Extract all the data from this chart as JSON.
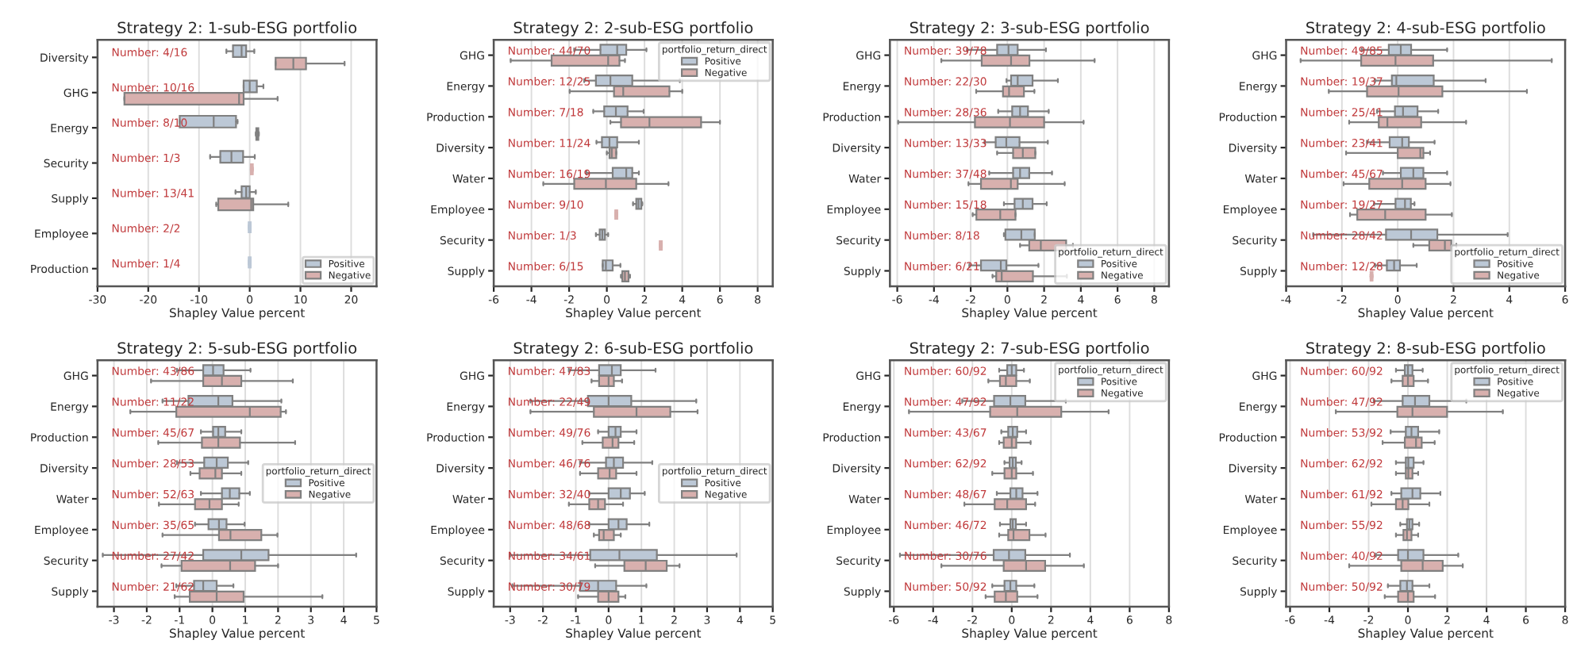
{
  "chart_data": [
    {
      "type": "box",
      "orientation": "horizontal",
      "title": "Strategy 2: 1-sub-ESG portfolio",
      "xlabel": "Shapley Value percent",
      "categories": [
        "Diversity",
        "GHG",
        "Energy",
        "Security",
        "Supply",
        "Employee",
        "Production"
      ],
      "xlim": [
        -30,
        25
      ],
      "xticks": [
        -30,
        -20,
        -10,
        0,
        10,
        20
      ],
      "grid": "x",
      "legend": "bottom right",
      "annotations": [
        "Number: 4/16",
        "Number: 10/16",
        "Number: 8/10",
        "Number: 1/3",
        "Number: 13/41",
        "Number: 2/2",
        "Number: 1/4"
      ],
      "series": [
        {
          "name": "Positive",
          "color": "#bcc8d6",
          "boxes": [
            {
              "low": -4.6,
              "q1": -3.3,
              "median": -1.6,
              "q3": -0.7,
              "high": 0.9
            },
            {
              "low": -1.2,
              "q1": -1.2,
              "median": 0,
              "q3": 1.4,
              "high": 2.7
            },
            {
              "low": -13.8,
              "q1": -13.8,
              "median": -7.1,
              "q3": -2.7,
              "high": -2.4
            },
            {
              "low": -7.8,
              "q1": -5.8,
              "median": -3.6,
              "q3": -1.3,
              "high": 1.0
            },
            {
              "low": -2.8,
              "q1": -1.6,
              "median": -0.7,
              "q3": 0,
              "high": 1.2
            },
            {
              "low": 0,
              "q1": 0,
              "median": 0,
              "q3": 0,
              "high": 0
            },
            {
              "low": 0,
              "q1": 0,
              "median": 0,
              "q3": 0,
              "high": 0
            }
          ]
        },
        {
          "name": "Negative",
          "color": "#d8b0ae",
          "boxes": [
            {
              "low": 5.1,
              "q1": 5.1,
              "median": 8.6,
              "q3": 11.1,
              "high": 18.7
            },
            {
              "low": -24.7,
              "q1": -24.7,
              "median": -2.1,
              "q3": -1.2,
              "high": 5.5
            },
            {
              "low": 1.2,
              "q1": 1.3,
              "median": 1.5,
              "q3": 1.7,
              "high": 1.8
            },
            {
              "low": 0.4,
              "q1": 0.4,
              "median": 0.4,
              "q3": 0.4,
              "high": 0.4
            },
            {
              "low": -6.6,
              "q1": -6.2,
              "median": 0.3,
              "q3": 0.7,
              "high": 7.6
            },
            null,
            null
          ]
        }
      ]
    },
    {
      "type": "box",
      "orientation": "horizontal",
      "title": "Strategy 2: 2-sub-ESG portfolio",
      "xlabel": "Shapley Value percent",
      "categories": [
        "GHG",
        "Energy",
        "Production",
        "Diversity",
        "Water",
        "Employee",
        "Security",
        "Supply"
      ],
      "xlim": [
        -6,
        8.8
      ],
      "xticks": [
        -6,
        -4,
        -2,
        0,
        2,
        4,
        6,
        8
      ],
      "grid": "x",
      "legend": "top right",
      "legend_title": "portfolio_return_direct",
      "annotations": [
        "Number: 44/70",
        "Number: 12/25",
        "Number: 7/18",
        "Number: 11/24",
        "Number: 16/19",
        "Number: 9/10",
        "Number: 1/3",
        "Number: 6/15"
      ],
      "series": [
        {
          "name": "Positive",
          "color": "#bcc8d6",
          "boxes": [
            {
              "low": -1.73,
              "q1": -0.34,
              "median": 0.55,
              "q3": 1.03,
              "high": 2.1
            },
            {
              "low": -1.2,
              "q1": -0.58,
              "median": 0.19,
              "q3": 1.35,
              "high": 3.87
            },
            {
              "low": -0.72,
              "q1": -0.14,
              "median": 0.48,
              "q3": 1.1,
              "high": 1.95
            },
            {
              "low": -0.55,
              "q1": -0.26,
              "median": 0.14,
              "q3": 0.55,
              "high": 1.7
            },
            {
              "low": -1.08,
              "q1": 0.31,
              "median": 1.03,
              "q3": 1.35,
              "high": 1.7
            },
            {
              "low": 1.39,
              "q1": 1.56,
              "median": 1.68,
              "q3": 1.83,
              "high": 1.88
            },
            {
              "low": -0.58,
              "q1": -0.38,
              "median": -0.24,
              "q3": -0.1,
              "high": 0.07
            },
            {
              "low": -0.22,
              "q1": -0.22,
              "median": -0.05,
              "q3": 0.31,
              "high": 0.72
            }
          ]
        },
        {
          "name": "Negative",
          "color": "#d8b0ae",
          "boxes": [
            {
              "low": -5.1,
              "q1": -2.93,
              "median": 0.07,
              "q3": 0.67,
              "high": 0.96
            },
            {
              "low": -1.97,
              "q1": 0.38,
              "median": 0.87,
              "q3": 3.32,
              "high": 4.0
            },
            {
              "low": 0.19,
              "q1": 0.75,
              "median": 2.26,
              "q3": 5.0,
              "high": 6.0
            },
            {
              "low": 0,
              "q1": 0.14,
              "median": 0.26,
              "q3": 0.5,
              "high": 0.5
            },
            {
              "low": -3.37,
              "q1": -1.73,
              "median": -0.05,
              "q3": 1.56,
              "high": 3.27
            },
            {
              "low": 0.5,
              "q1": 0.5,
              "median": 0.5,
              "q3": 0.5,
              "high": 0.5
            },
            {
              "low": 2.86,
              "q1": 2.86,
              "median": 2.86,
              "q3": 2.86,
              "high": 2.86
            },
            {
              "low": 0.75,
              "q1": 0.82,
              "median": 0.96,
              "q3": 1.15,
              "high": 1.23
            }
          ]
        }
      ]
    },
    {
      "type": "box",
      "orientation": "horizontal",
      "title": "Strategy 2: 3-sub-ESG portfolio",
      "xlabel": "Shapley Value percent",
      "categories": [
        "GHG",
        "Energy",
        "Production",
        "Diversity",
        "Water",
        "Employee",
        "Security",
        "Supply"
      ],
      "xlim": [
        -6.4,
        8.8
      ],
      "xticks": [
        -6,
        -4,
        -2,
        0,
        2,
        4,
        6,
        8
      ],
      "grid": "x",
      "legend": "bottom right",
      "legend_title": "portfolio_return_direct",
      "annotations": [
        "Number: 39/78",
        "Number: 22/30",
        "Number: 28/36",
        "Number: 13/33",
        "Number: 37/48",
        "Number: 15/18",
        "Number: 8/18",
        "Number: 6/21"
      ],
      "series": [
        {
          "name": "Positive",
          "color": "#bcc8d6",
          "boxes": [
            {
              "low": -2.2,
              "q1": -0.56,
              "median": 0.06,
              "q3": 0.56,
              "high": 2.1
            },
            {
              "low": -0.05,
              "q1": 0.2,
              "median": 0.56,
              "q3": 1.37,
              "high": 2.75
            },
            {
              "low": -0.5,
              "q1": 0.26,
              "median": 0.69,
              "q3": 1.12,
              "high": 2.25
            },
            {
              "low": -1.24,
              "q1": -0.64,
              "median": -0.06,
              "q3": 0.66,
              "high": 2.2
            },
            {
              "low": -0.99,
              "q1": 0.31,
              "median": 0.69,
              "q3": 1.19,
              "high": 2.43
            },
            {
              "low": -0.19,
              "q1": 0.39,
              "median": 0.84,
              "q3": 1.37,
              "high": 2.14
            },
            {
              "low": -0.19,
              "q1": -0.11,
              "median": 0.76,
              "q3": 1.49,
              "high": 1.49
            },
            {
              "low": -2.07,
              "q1": -1.44,
              "median": -0.36,
              "q3": -0.06,
              "high": 1.69
            }
          ]
        },
        {
          "name": "Negative",
          "color": "#d8b0ae",
          "boxes": [
            {
              "low": -3.6,
              "q1": -1.4,
              "median": 0.2,
              "q3": 1.2,
              "high": 4.75
            },
            {
              "low": -1.7,
              "q1": -0.24,
              "median": 0.09,
              "q3": 0.9,
              "high": 1.47
            },
            {
              "low": -5.95,
              "q1": -1.77,
              "median": 0.14,
              "q3": 2.0,
              "high": 4.15
            },
            {
              "low": -0.56,
              "q1": 0.31,
              "median": 0.84,
              "q3": 1.52,
              "high": 1.52
            },
            {
              "low": -2.12,
              "q1": -1.44,
              "median": 0.19,
              "q3": 0.56,
              "high": 3.12
            },
            {
              "low": -1.89,
              "q1": -1.69,
              "median": -0.39,
              "q3": 0.44,
              "high": 0.44
            },
            {
              "low": 0.69,
              "q1": 1.19,
              "median": 1.82,
              "q3": 3.2,
              "high": 3.57
            },
            {
              "low": -0.81,
              "q1": -0.61,
              "median": -0.31,
              "q3": 1.39,
              "high": 3.24
            }
          ]
        }
      ]
    },
    {
      "type": "box",
      "orientation": "horizontal",
      "title": "Strategy 2: 4-sub-ESG portfolio",
      "xlabel": "Shapley Value percent",
      "categories": [
        "GHG",
        "Energy",
        "Production",
        "Diversity",
        "Water",
        "Employee",
        "Security",
        "Supply"
      ],
      "xlim": [
        -4,
        6
      ],
      "xticks": [
        -4,
        -2,
        0,
        2,
        4,
        6
      ],
      "grid": "x",
      "legend": "bottom right",
      "legend_title": "portfolio_return_direct",
      "annotations": [
        "Number: 49/85",
        "Number: 19/37",
        "Number: 25/41",
        "Number: 23/41",
        "Number: 45/67",
        "Number: 19/27",
        "Number: 28/42",
        "Number: 12/28"
      ],
      "series": [
        {
          "name": "Positive",
          "color": "#bcc8d6",
          "boxes": [
            {
              "low": -1.29,
              "q1": -0.32,
              "median": 0.11,
              "q3": 0.48,
              "high": 1.77
            },
            {
              "low": -0.81,
              "q1": -0.21,
              "median": -0.05,
              "q3": 1.29,
              "high": 3.15
            },
            {
              "low": -0.74,
              "q1": -0.1,
              "median": 0.19,
              "q3": 0.71,
              "high": 1.45
            },
            {
              "low": -1.1,
              "q1": -0.29,
              "median": 0.16,
              "q3": 0.4,
              "high": 1.32
            },
            {
              "low": -0.53,
              "q1": 0.11,
              "median": 0.56,
              "q3": 0.92,
              "high": 1.77
            },
            {
              "low": -0.85,
              "q1": -0.08,
              "median": 0.26,
              "q3": 0.47,
              "high": 0.6
            },
            {
              "low": -3.03,
              "q1": -0.42,
              "median": 0.48,
              "q3": 1.42,
              "high": 3.94
            },
            {
              "low": -0.81,
              "q1": -0.39,
              "median": -0.13,
              "q3": 0.08,
              "high": 0.68
            }
          ]
        },
        {
          "name": "Negative",
          "color": "#d8b0ae",
          "boxes": [
            {
              "low": -3.48,
              "q1": -1.31,
              "median": -0.08,
              "q3": 1.27,
              "high": 5.52
            },
            {
              "low": -2.47,
              "q1": -1.1,
              "median": 0.03,
              "q3": 1.6,
              "high": 4.63
            },
            {
              "low": -1.74,
              "q1": -0.68,
              "median": -0.37,
              "q3": 0.84,
              "high": 2.45
            },
            {
              "low": -1.85,
              "q1": 0,
              "median": 0.81,
              "q3": 0.92,
              "high": 1.16
            },
            {
              "low": -1.94,
              "q1": -1.02,
              "median": 0.16,
              "q3": 1.0,
              "high": 1.89
            },
            {
              "low": -1.71,
              "q1": -1.45,
              "median": -0.45,
              "q3": 1.0,
              "high": 1.94
            },
            {
              "low": 0.56,
              "q1": 1.13,
              "median": 1.69,
              "q3": 1.92,
              "high": 2.1
            },
            {
              "low": -0.94,
              "q1": -0.94,
              "median": -0.94,
              "q3": -0.94,
              "high": -0.94
            }
          ]
        }
      ]
    },
    {
      "type": "box",
      "orientation": "horizontal",
      "title": "Strategy 2: 5-sub-ESG portfolio",
      "xlabel": "Shapley Value percent",
      "categories": [
        "GHG",
        "Energy",
        "Production",
        "Diversity",
        "Water",
        "Employee",
        "Security",
        "Supply"
      ],
      "xlim": [
        -3.5,
        5
      ],
      "xticks": [
        -3,
        -2,
        -1,
        0,
        1,
        2,
        3,
        4,
        5
      ],
      "grid": "x",
      "legend": "right",
      "legend_title": "portfolio_return_direct",
      "annotations": [
        "Number: 43/86",
        "Number: 11/22",
        "Number: 45/67",
        "Number: 28/53",
        "Number: 52/63",
        "Number: 35/65",
        "Number: 27/42",
        "Number: 21/62"
      ],
      "series": [
        {
          "name": "Positive",
          "color": "#bcc8d6",
          "boxes": [
            {
              "low": -1.08,
              "q1": -0.28,
              "median": 0.02,
              "q3": 0.34,
              "high": 1.16
            },
            {
              "low": -1.52,
              "q1": -0.73,
              "median": 0.18,
              "q3": 0.61,
              "high": 2.1
            },
            {
              "low": -0.35,
              "q1": 0.02,
              "median": 0.18,
              "q3": 0.39,
              "high": 0.88
            },
            {
              "low": -1.08,
              "q1": -0.25,
              "median": 0.13,
              "q3": 0.47,
              "high": 1.09
            },
            {
              "low": -0.35,
              "q1": 0.29,
              "median": 0.53,
              "q3": 0.82,
              "high": 1.14
            },
            {
              "low": -0.53,
              "q1": -0.12,
              "median": 0.2,
              "q3": 0.43,
              "high": 0.98
            },
            {
              "low": -3.34,
              "q1": -0.28,
              "median": 0.88,
              "q3": 1.71,
              "high": 4.38
            },
            {
              "low": -1.1,
              "q1": -0.56,
              "median": -0.28,
              "q3": 0.13,
              "high": 0.64
            }
          ]
        },
        {
          "name": "Negative",
          "color": "#d8b0ae",
          "boxes": [
            {
              "low": -1.87,
              "q1": -0.28,
              "median": 0.29,
              "q3": 0.88,
              "high": 2.45
            },
            {
              "low": -2.5,
              "q1": -1.1,
              "median": 1.14,
              "q3": 2.08,
              "high": 2.24
            },
            {
              "low": -1.65,
              "q1": -0.32,
              "median": 0.18,
              "q3": 0.84,
              "high": 2.52
            },
            {
              "low": -0.67,
              "q1": -0.39,
              "median": 0.09,
              "q3": 0.29,
              "high": 0.88
            },
            {
              "low": -1.63,
              "q1": -0.53,
              "median": -0.09,
              "q3": 0.29,
              "high": 0.8
            },
            {
              "low": -1.52,
              "q1": 0.2,
              "median": 0.55,
              "q3": 1.49,
              "high": 1.98
            },
            {
              "low": -1.55,
              "q1": -0.94,
              "median": 0.54,
              "q3": 1.3,
              "high": 2.0
            },
            {
              "low": -1.15,
              "q1": -0.69,
              "median": 0.13,
              "q3": 0.95,
              "high": 3.35
            }
          ]
        }
      ]
    },
    {
      "type": "box",
      "orientation": "horizontal",
      "title": "Strategy 2: 6-sub-ESG portfolio",
      "xlabel": "Shapley Value percent",
      "categories": [
        "GHG",
        "Energy",
        "Production",
        "Diversity",
        "Water",
        "Employee",
        "Security",
        "Supply"
      ],
      "xlim": [
        -3.5,
        5
      ],
      "xticks": [
        -3,
        -2,
        -1,
        0,
        1,
        2,
        3,
        4,
        5
      ],
      "grid": "x",
      "legend": "right",
      "legend_title": "portfolio_return_direct",
      "annotations": [
        "Number: 47/83",
        "Number: 22/49",
        "Number: 49/76",
        "Number: 46/76",
        "Number: 32/40",
        "Number: 48/68",
        "Number: 34/61",
        "Number: 30/79"
      ],
      "series": [
        {
          "name": "Positive",
          "color": "#bcc8d6",
          "boxes": [
            {
              "low": -1.21,
              "q1": -0.29,
              "median": 0.1,
              "q3": 0.37,
              "high": 1.43
            },
            {
              "low": -2.38,
              "q1": -0.63,
              "median": 0,
              "q3": 0.69,
              "high": 2.67
            },
            {
              "low": -0.32,
              "q1": 0,
              "median": 0.21,
              "q3": 0.37,
              "high": 0.85
            },
            {
              "low": -0.87,
              "q1": -0.08,
              "median": 0.16,
              "q3": 0.44,
              "high": 1.33
            },
            {
              "low": -0.59,
              "q1": 0,
              "median": 0.37,
              "q3": 0.65,
              "high": 1.1
            },
            {
              "low": -0.59,
              "q1": 0,
              "median": 0.3,
              "q3": 0.55,
              "high": 1.24
            },
            {
              "low": -3.0,
              "q1": -0.56,
              "median": 0.33,
              "q3": 1.47,
              "high": 3.9
            },
            {
              "low": -2.93,
              "q1": -0.87,
              "median": -0.32,
              "q3": 0.23,
              "high": 1.15
            }
          ]
        },
        {
          "name": "Negative",
          "color": "#d8b0ae",
          "boxes": [
            {
              "low": -0.52,
              "q1": -0.29,
              "median": 0,
              "q3": 0.16,
              "high": 0.41
            },
            {
              "low": -2.38,
              "q1": -0.45,
              "median": 0.85,
              "q3": 1.88,
              "high": 2.71
            },
            {
              "low": -0.8,
              "q1": -0.18,
              "median": 0.12,
              "q3": 0.3,
              "high": 0.78
            },
            {
              "low": -0.87,
              "q1": -0.32,
              "median": 0.03,
              "q3": 0.23,
              "high": 0.85
            },
            {
              "low": -1.21,
              "q1": -0.59,
              "median": -0.32,
              "q3": -0.11,
              "high": 0.44
            },
            {
              "low": -0.45,
              "q1": -0.29,
              "median": -0.15,
              "q3": 0.16,
              "high": 0.37
            },
            {
              "low": -0.41,
              "q1": 0.48,
              "median": 1.13,
              "q3": 1.77,
              "high": 2.16
            },
            {
              "low": -0.93,
              "q1": -0.32,
              "median": 0,
              "q3": 0.3,
              "high": 0.51
            }
          ]
        }
      ]
    },
    {
      "type": "box",
      "orientation": "horizontal",
      "title": "Strategy 2: 7-sub-ESG portfolio",
      "xlabel": "Shapley Value percent",
      "categories": [
        "GHG",
        "Energy",
        "Production",
        "Diversity",
        "Water",
        "Employee",
        "Security",
        "Supply"
      ],
      "xlim": [
        -6.2,
        8
      ],
      "xticks": [
        -6,
        -4,
        -2,
        0,
        2,
        4,
        6,
        8
      ],
      "grid": "x",
      "legend": "top right",
      "legend_title": "portfolio_return_direct",
      "annotations": [
        "Number: 60/92",
        "Number: 47/92",
        "Number: 43/67",
        "Number: 62/92",
        "Number: 48/67",
        "Number: 46/72",
        "Number: 30/76",
        "Number: 50/92"
      ],
      "series": [
        {
          "name": "Positive",
          "color": "#bcc8d6",
          "boxes": [
            {
              "low": -0.64,
              "q1": -0.23,
              "median": 0,
              "q3": 0.23,
              "high": 0.62
            },
            {
              "low": -2.52,
              "q1": -0.9,
              "median": -0.07,
              "q3": 0.69,
              "high": 2.75
            },
            {
              "low": -0.53,
              "q1": -0.18,
              "median": 0.05,
              "q3": 0.28,
              "high": 0.73
            },
            {
              "low": -0.37,
              "q1": -0.11,
              "median": 0.05,
              "q3": 0.21,
              "high": 0.5
            },
            {
              "low": -0.76,
              "q1": -0.07,
              "median": 0.23,
              "q3": 0.55,
              "high": 1.31
            },
            {
              "low": -0.6,
              "q1": -0.07,
              "median": 0.05,
              "q3": 0.21,
              "high": 0.73
            },
            {
              "low": -5.69,
              "q1": -0.92,
              "median": -0.14,
              "q3": 0.69,
              "high": 2.96
            },
            {
              "low": -0.99,
              "q1": -0.37,
              "median": -0.07,
              "q3": 0.23,
              "high": 1.15
            }
          ]
        },
        {
          "name": "Negative",
          "color": "#d8b0ae",
          "boxes": [
            {
              "low": -1.19,
              "q1": -0.6,
              "median": -0.3,
              "q3": 0.23,
              "high": 0.92
            },
            {
              "low": -5.23,
              "q1": -1.1,
              "median": 0.28,
              "q3": 2.52,
              "high": 4.93
            },
            {
              "low": -0.64,
              "q1": -0.41,
              "median": 0,
              "q3": 0.23,
              "high": 0.96
            },
            {
              "low": -0.99,
              "q1": -0.37,
              "median": 0,
              "q3": 0.23,
              "high": 1.08
            },
            {
              "low": -2.41,
              "q1": -0.87,
              "median": -0.23,
              "q3": 0.73,
              "high": 1.19
            },
            {
              "low": -0.64,
              "q1": -0.18,
              "median": 0.09,
              "q3": 0.9,
              "high": 1.72
            },
            {
              "low": -3.58,
              "q1": -0.41,
              "median": 0.73,
              "q3": 1.7,
              "high": 3.67
            },
            {
              "low": -1.33,
              "q1": -0.87,
              "median": -0.3,
              "q3": 0.28,
              "high": 1.31
            }
          ]
        }
      ]
    },
    {
      "type": "box",
      "orientation": "horizontal",
      "title": "Strategy 2: 8-sub-ESG portfolio",
      "xlabel": "Shapley Value percent",
      "categories": [
        "GHG",
        "Energy",
        "Production",
        "Diversity",
        "Water",
        "Employee",
        "Security",
        "Supply"
      ],
      "xlim": [
        -6.2,
        8
      ],
      "xticks": [
        -6,
        -4,
        -2,
        0,
        2,
        4,
        6,
        8
      ],
      "grid": "x",
      "legend": "top right",
      "legend_title": "portfolio_return_direct",
      "annotations": [
        "Number: 60/92",
        "Number: 47/92",
        "Number: 53/92",
        "Number: 62/92",
        "Number: 61/92",
        "Number: 55/92",
        "Number: 40/92",
        "Number: 50/92"
      ],
      "series": [
        {
          "name": "Positive",
          "color": "#bcc8d6",
          "boxes": [
            {
              "low": -0.61,
              "q1": -0.16,
              "median": 0,
              "q3": 0.23,
              "high": 0.75
            },
            {
              "low": -1.74,
              "q1": -0.27,
              "median": 0.36,
              "q3": 1.09,
              "high": 2.97
            },
            {
              "low": -0.88,
              "q1": -0.11,
              "median": 0.18,
              "q3": 0.52,
              "high": 1.59
            },
            {
              "low": -0.61,
              "q1": -0.11,
              "median": 0.02,
              "q3": 0.29,
              "high": 0.79
            },
            {
              "low": -0.84,
              "q1": -0.34,
              "median": 0.23,
              "q3": 0.63,
              "high": 1.65
            },
            {
              "low": -0.39,
              "q1": -0.05,
              "median": 0.07,
              "q3": 0.23,
              "high": 0.57
            },
            {
              "low": -1.63,
              "q1": -0.5,
              "median": 0,
              "q3": 0.79,
              "high": 2.56
            },
            {
              "low": -1.02,
              "q1": -0.39,
              "median": -0.05,
              "q3": 0.23,
              "high": 1.09
            }
          ]
        },
        {
          "name": "Negative",
          "color": "#d8b0ae",
          "boxes": [
            {
              "low": -0.84,
              "q1": -0.27,
              "median": 0,
              "q3": 0.29,
              "high": 1.02
            },
            {
              "low": -3.67,
              "q1": -0.54,
              "median": 0.23,
              "q3": 1.99,
              "high": 4.83
            },
            {
              "low": -1.29,
              "q1": -0.16,
              "median": 0.41,
              "q3": 0.7,
              "high": 1.36
            },
            {
              "low": -0.61,
              "q1": -0.11,
              "median": 0.02,
              "q3": 0.23,
              "high": 0.52
            },
            {
              "low": -1.86,
              "q1": -0.61,
              "median": -0.27,
              "q3": 0.02,
              "high": 1.09
            },
            {
              "low": -0.61,
              "q1": -0.23,
              "median": -0.05,
              "q3": 0.18,
              "high": 0.52
            },
            {
              "low": -2.99,
              "q1": -0.34,
              "median": 0.75,
              "q3": 1.77,
              "high": 2.79
            },
            {
              "low": -1.18,
              "q1": -0.5,
              "median": 0,
              "q3": 0.29,
              "high": 1.38
            }
          ]
        }
      ]
    }
  ]
}
